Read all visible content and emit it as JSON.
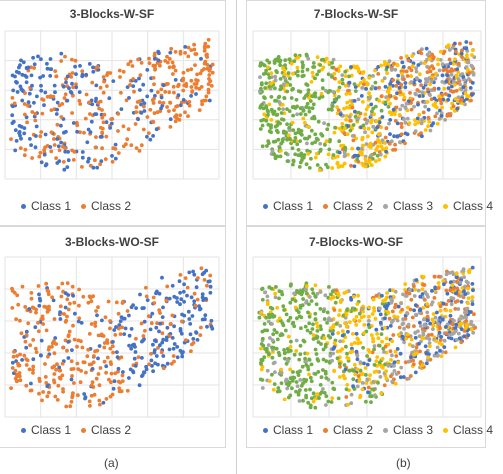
{
  "colors": {
    "class1": "#4472C4",
    "class2": "#ED7D31",
    "class3": "#A5A5A5",
    "class4": "#FFC000",
    "class5": "#70AD47"
  },
  "captions": {
    "left": "(a)",
    "right": "(b)"
  },
  "chart_data": [
    {
      "type": "scatter",
      "title": "3-Blocks-W-SF",
      "grid": true,
      "legend": "bottom",
      "series": [
        {
          "name": "Class 1",
          "color": "#4472C4",
          "region": "left-and-mixed"
        },
        {
          "name": "Class 2",
          "color": "#ED7D31",
          "region": "right-and-mixed"
        }
      ]
    },
    {
      "type": "scatter",
      "title": "7-Blocks-W-SF",
      "grid": true,
      "legend": "bottom",
      "series": [
        {
          "name": "Class 1",
          "color": "#4472C4",
          "region": "right"
        },
        {
          "name": "Class 2",
          "color": "#ED7D31",
          "region": "right"
        },
        {
          "name": "Class 3",
          "color": "#A5A5A5",
          "region": "right"
        },
        {
          "name": "Class 4",
          "color": "#FFC000",
          "region": "center"
        },
        {
          "name": "",
          "color": "#70AD47",
          "region": "left"
        }
      ]
    },
    {
      "type": "scatter",
      "title": "3-Blocks-WO-SF",
      "grid": true,
      "legend": "bottom",
      "series": [
        {
          "name": "Class 1",
          "color": "#4472C4",
          "region": "right"
        },
        {
          "name": "Class 2",
          "color": "#ED7D31",
          "region": "left"
        }
      ]
    },
    {
      "type": "scatter",
      "title": "7-Blocks-WO-SF",
      "grid": true,
      "legend": "bottom",
      "series": [
        {
          "name": "Class 1",
          "color": "#4472C4",
          "region": "right"
        },
        {
          "name": "Class 2",
          "color": "#ED7D31",
          "region": "right"
        },
        {
          "name": "Class 3",
          "color": "#A5A5A5",
          "region": "mixed"
        },
        {
          "name": "Class 4",
          "color": "#FFC000",
          "region": "center"
        },
        {
          "name": "",
          "color": "#70AD47",
          "region": "left"
        }
      ]
    }
  ]
}
